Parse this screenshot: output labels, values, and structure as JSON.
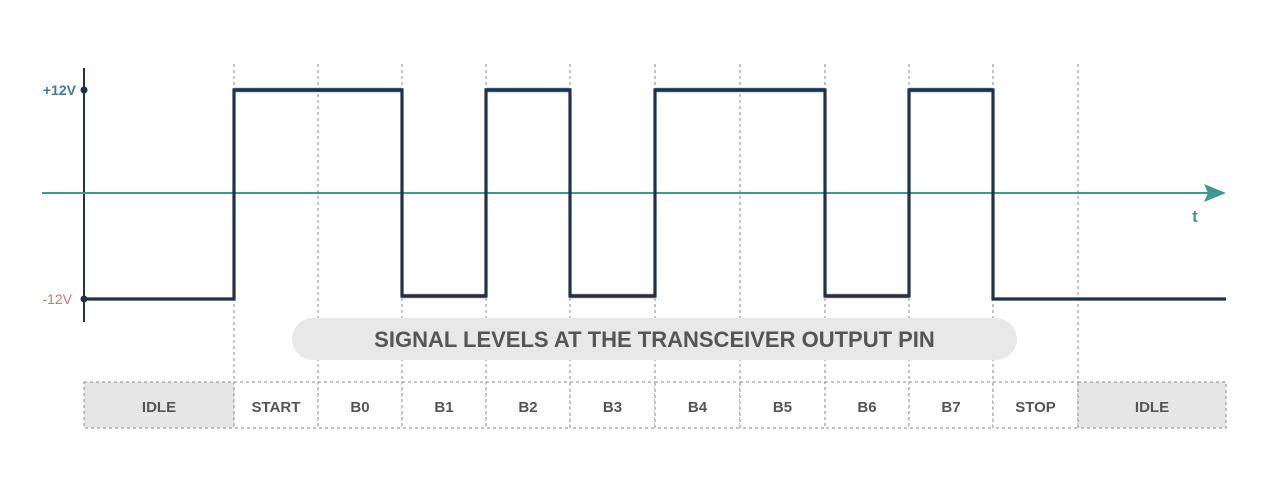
{
  "diagram": {
    "title": "SIGNAL LEVELS AT THE TRANSCEIVER OUTPUT PIN",
    "time_axis_label": "t",
    "levels": {
      "high": "+12V",
      "low": "-12V"
    },
    "segments": [
      {
        "label": "IDLE",
        "level": "low",
        "shaded": true
      },
      {
        "label": "START",
        "level": "high",
        "shaded": false
      },
      {
        "label": "B0",
        "level": "high",
        "shaded": false
      },
      {
        "label": "B1",
        "level": "low",
        "shaded": false
      },
      {
        "label": "B2",
        "level": "high",
        "shaded": false
      },
      {
        "label": "B3",
        "level": "low",
        "shaded": false
      },
      {
        "label": "B4",
        "level": "high",
        "shaded": false
      },
      {
        "label": "B5",
        "level": "high",
        "shaded": false
      },
      {
        "label": "B6",
        "level": "low",
        "shaded": false
      },
      {
        "label": "B7",
        "level": "high",
        "shaded": false
      },
      {
        "label": "STOP",
        "level": "low",
        "shaded": false
      },
      {
        "label": "IDLE",
        "level": "low",
        "shaded": true
      }
    ],
    "colors": {
      "signal": "#1e3348",
      "high_level": "#4f82a0",
      "low_level": "#d4857a",
      "time_axis": "#3f9a8c",
      "high_label": "#3d7a96",
      "low_label": "#cc7468",
      "grid": "#8a8a8a",
      "shade": "#e6e6e6",
      "title_bg": "#e8e8e8",
      "title_text": "#555555"
    }
  }
}
